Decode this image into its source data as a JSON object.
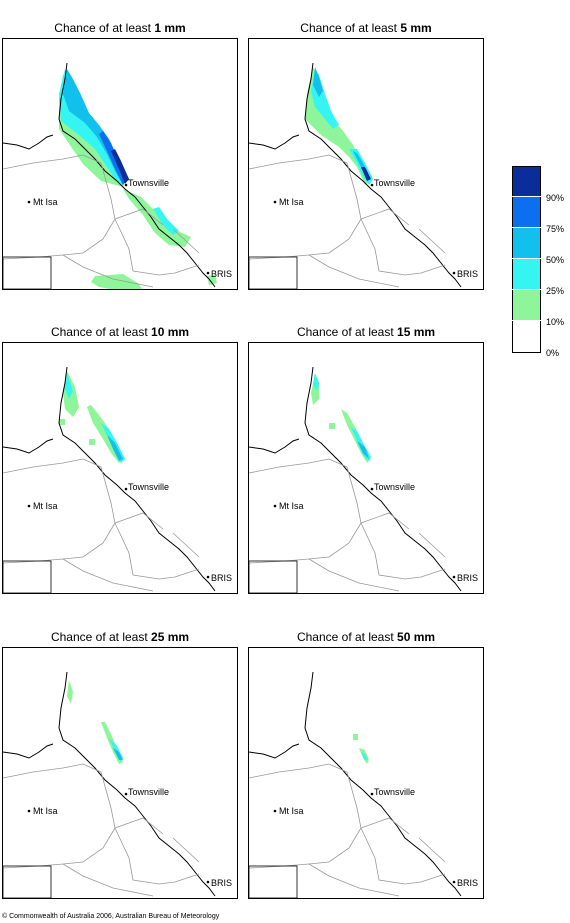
{
  "panels": [
    {
      "title_prefix": "Chance of at least ",
      "threshold": "1 mm"
    },
    {
      "title_prefix": "Chance of at least ",
      "threshold": "5 mm"
    },
    {
      "title_prefix": "Chance of at least ",
      "threshold": "10 mm"
    },
    {
      "title_prefix": "Chance of at least ",
      "threshold": "15 mm"
    },
    {
      "title_prefix": "Chance of at least ",
      "threshold": "25 mm"
    },
    {
      "title_prefix": "Chance of at least ",
      "threshold": "50 mm"
    }
  ],
  "places": {
    "townsville": "Townsville",
    "mt_isa": "Mt Isa",
    "brisbane": "BRIS"
  },
  "legend": {
    "labels": [
      "90%",
      "75%",
      "50%",
      "25%",
      "10%",
      "0%"
    ],
    "colors": [
      "#0a2d9a",
      "#0b6ff0",
      "#12c0ee",
      "#35f5f2",
      "#8ef59a",
      "#ffffff"
    ]
  },
  "copyright": "© Commonwealth of Australia 2006, Australian Bureau of Meteorology"
}
